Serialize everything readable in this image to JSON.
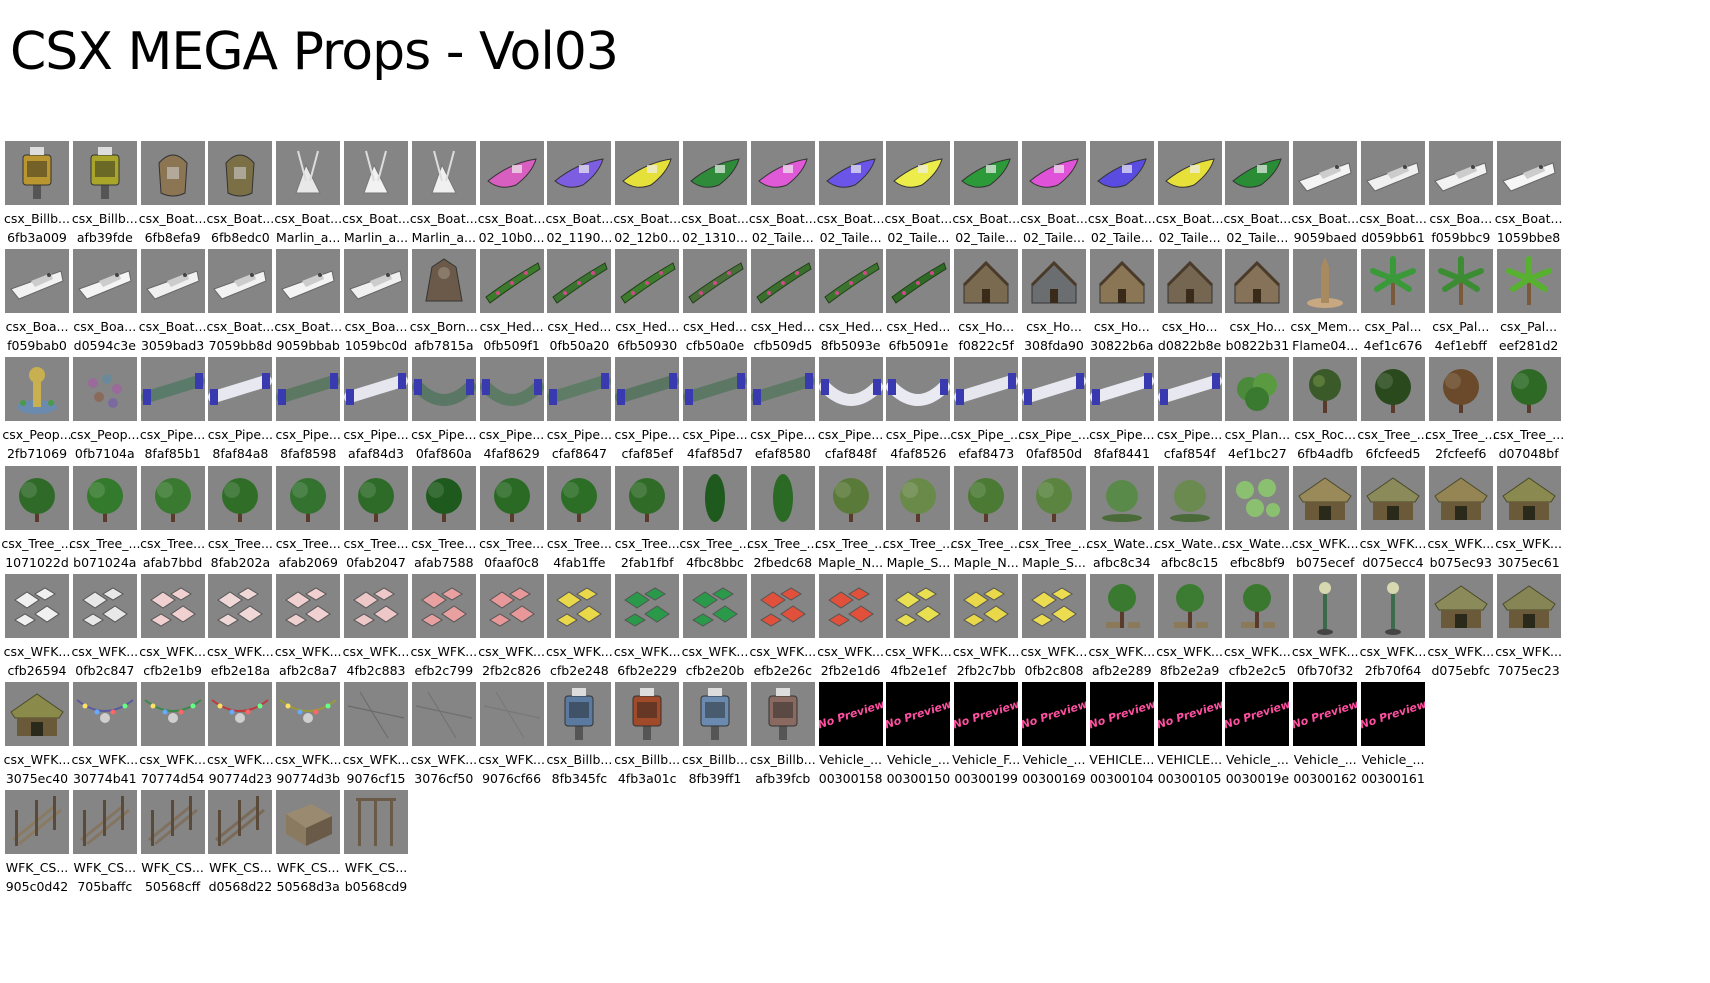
{
  "title": "CSX MEGA Props - Vol03",
  "colors": {
    "thumb_bg": "#858585",
    "no_preview_bg": "#000000",
    "no_preview_text": "#ff4fa0"
  },
  "rows": [
    [
      {
        "name": "csx_Billb...",
        "hash": "6fb3a009",
        "icon": "billboard-icon",
        "color": "#b9962f"
      },
      {
        "name": "csx_Billb...",
        "hash": "afb39fde",
        "icon": "billboard-icon",
        "color": "#a8a52a"
      },
      {
        "name": "csx_Boat...",
        "hash": "6fb8efa9",
        "icon": "boat-icon",
        "color": "#8c7552"
      },
      {
        "name": "csx_Boat...",
        "hash": "6fb8edc0",
        "icon": "boat-icon",
        "color": "#7a6f45"
      },
      {
        "name": "csx_Boat...",
        "hash": "Marlin_a...",
        "icon": "sailboat-icon",
        "color": "#e8e8e8"
      },
      {
        "name": "csx_Boat...",
        "hash": "Marlin_a...",
        "icon": "sailboat-icon",
        "color": "#f2f2f2"
      },
      {
        "name": "csx_Boat...",
        "hash": "Marlin_a...",
        "icon": "sailboat-icon",
        "color": "#f0f0f0"
      },
      {
        "name": "csx_Boat...",
        "hash": "02_10b0...",
        "icon": "speedboat-icon",
        "color": "#d85fc0"
      },
      {
        "name": "csx_Boat...",
        "hash": "02_1190...",
        "icon": "speedboat-icon",
        "color": "#7d5ee0"
      },
      {
        "name": "csx_Boat...",
        "hash": "02_12b0...",
        "icon": "speedboat-icon",
        "color": "#e6e03a"
      },
      {
        "name": "csx_Boat...",
        "hash": "02_1310...",
        "icon": "speedboat-icon",
        "color": "#2f8a3a"
      },
      {
        "name": "csx_Boat...",
        "hash": "02_Taile...",
        "icon": "speedboat-icon",
        "color": "#e05ad8"
      },
      {
        "name": "csx_Boat...",
        "hash": "02_Taile...",
        "icon": "speedboat-icon",
        "color": "#6a55e8"
      },
      {
        "name": "csx_Boat...",
        "hash": "02_Taile...",
        "icon": "speedboat-icon",
        "color": "#ecec4a"
      },
      {
        "name": "csx_Boat...",
        "hash": "02_Taile...",
        "icon": "speedboat-icon",
        "color": "#2c9a38"
      },
      {
        "name": "csx_Boat...",
        "hash": "02_Taile...",
        "icon": "speedboat-icon",
        "color": "#e052d8"
      },
      {
        "name": "csx_Boat...",
        "hash": "02_Taile...",
        "icon": "speedboat-icon",
        "color": "#5a4ce0"
      },
      {
        "name": "csx_Boat...",
        "hash": "02_Taile...",
        "icon": "speedboat-icon",
        "color": "#e8e03a"
      },
      {
        "name": "csx_Boat...",
        "hash": "02_Taile...",
        "icon": "speedboat-icon",
        "color": "#2a8c34"
      },
      {
        "name": "csx_Boat...",
        "hash": "9059baed",
        "icon": "yacht-icon",
        "color": "#f4f4f4"
      },
      {
        "name": "csx_Boat...",
        "hash": "d059bb61",
        "icon": "yacht-icon",
        "color": "#f0f0f0"
      },
      {
        "name": "csx_Boa...",
        "hash": "f059bbc9",
        "icon": "yacht-icon",
        "color": "#f2f2f2"
      },
      {
        "name": "csx_Boat...",
        "hash": "1059bbe8",
        "icon": "yacht-icon",
        "color": "#f6f6f6"
      }
    ],
    [
      {
        "name": "csx_Boa...",
        "hash": "f059bab0",
        "icon": "yacht-icon",
        "color": "#f2f2f2"
      },
      {
        "name": "csx_Boa...",
        "hash": "d0594c3e",
        "icon": "yacht-icon",
        "color": "#f4f4f4"
      },
      {
        "name": "csx_Boat...",
        "hash": "3059bad3",
        "icon": "yacht-icon",
        "color": "#f0f0f0"
      },
      {
        "name": "csx_Boat...",
        "hash": "7059bb8d",
        "icon": "yacht-icon",
        "color": "#f2f2f2"
      },
      {
        "name": "csx_Boat...",
        "hash": "9059bbab",
        "icon": "yacht-icon",
        "color": "#f4f4f4"
      },
      {
        "name": "csx_Boa...",
        "hash": "1059bc0d",
        "icon": "yacht-icon",
        "color": "#f0f0f0"
      },
      {
        "name": "csx_Born...",
        "hash": "afb7815a",
        "icon": "statue-icon",
        "color": "#6b5a4a"
      },
      {
        "name": "csx_Hed...",
        "hash": "0fb509f1",
        "icon": "hedge-icon",
        "color": "#3c7a2c"
      },
      {
        "name": "csx_Hed...",
        "hash": "0fb50a20",
        "icon": "hedge-icon",
        "color": "#3a7430"
      },
      {
        "name": "csx_Hed...",
        "hash": "6fb50930",
        "icon": "hedge-icon",
        "color": "#3e7c2e"
      },
      {
        "name": "csx_Hed...",
        "hash": "cfb50a0e",
        "icon": "hedge-icon",
        "color": "#4a6e3a"
      },
      {
        "name": "csx_Hed...",
        "hash": "cfb509d5",
        "icon": "hedge-icon",
        "color": "#3b6f2d"
      },
      {
        "name": "csx_Hed...",
        "hash": "8fb5093e",
        "icon": "hedge-icon",
        "color": "#3d7530"
      },
      {
        "name": "csx_Hed...",
        "hash": "6fb5091e",
        "icon": "hedge-icon",
        "color": "#2f6a26"
      },
      {
        "name": "csx_Ho...",
        "hash": "f0822c5f",
        "icon": "house-icon",
        "color": "#7a6a50"
      },
      {
        "name": "csx_Ho...",
        "hash": "308fda90",
        "icon": "house-icon",
        "color": "#6a6e70"
      },
      {
        "name": "csx_Ho...",
        "hash": "30822b6a",
        "icon": "house-icon",
        "color": "#8a7654"
      },
      {
        "name": "csx_Ho...",
        "hash": "d0822b8e",
        "icon": "house-icon",
        "color": "#746650"
      },
      {
        "name": "csx_Ho...",
        "hash": "b0822b31",
        "icon": "house-icon",
        "color": "#857258"
      },
      {
        "name": "csx_Mem...",
        "hash": "Flame04...",
        "icon": "monument-icon",
        "color": "#a88a60"
      },
      {
        "name": "csx_Pal...",
        "hash": "4ef1c676",
        "icon": "palm-icon",
        "color": "#3a9a3a"
      },
      {
        "name": "csx_Pal...",
        "hash": "4ef1ebff",
        "icon": "palm-icon",
        "color": "#3c8c34"
      },
      {
        "name": "csx_Pal...",
        "hash": "eef281d2",
        "icon": "palm-icon",
        "color": "#58b030"
      }
    ],
    [
      {
        "name": "csx_Peop...",
        "hash": "2fb71069",
        "icon": "fountain-icon",
        "color": "#c8b050"
      },
      {
        "name": "csx_Peop...",
        "hash": "0fb7104a",
        "icon": "crowd-icon",
        "color": "#9a6a9a"
      },
      {
        "name": "csx_Pipe...",
        "hash": "8faf85b1",
        "icon": "pipe-icon",
        "color": "#5a7a6a"
      },
      {
        "name": "csx_Pipe...",
        "hash": "8faf84a8",
        "icon": "pipe-icon",
        "color": "#e8e8f0"
      },
      {
        "name": "csx_Pipe...",
        "hash": "8faf8598",
        "icon": "pipe-icon",
        "color": "#5c7862"
      },
      {
        "name": "csx_Pipe...",
        "hash": "afaf84d3",
        "icon": "pipe-icon",
        "color": "#e6e6ee"
      },
      {
        "name": "csx_Pipe...",
        "hash": "0faf860a",
        "icon": "pipe-curve-icon",
        "color": "#5a7664"
      },
      {
        "name": "csx_Pipe...",
        "hash": "4faf8629",
        "icon": "pipe-curve-icon",
        "color": "#5c7a64"
      },
      {
        "name": "csx_Pipe...",
        "hash": "cfaf8647",
        "icon": "pipe-icon",
        "color": "#5e7c66"
      },
      {
        "name": "csx_Pipe...",
        "hash": "cfaf85ef",
        "icon": "pipe-icon",
        "color": "#5a7662"
      },
      {
        "name": "csx_Pipe...",
        "hash": "4faf85d7",
        "icon": "pipe-icon",
        "color": "#5c7864"
      },
      {
        "name": "csx_Pipe...",
        "hash": "efaf8580",
        "icon": "pipe-icon",
        "color": "#5e7a66"
      },
      {
        "name": "csx_Pipe...",
        "hash": "cfaf848f",
        "icon": "pipe-curve-icon",
        "color": "#e8e8f0"
      },
      {
        "name": "csx_Pipe...",
        "hash": "4faf8526",
        "icon": "pipe-curve-icon",
        "color": "#eaeaf2"
      },
      {
        "name": "csx_Pipe_...",
        "hash": "efaf8473",
        "icon": "pipe-icon",
        "color": "#e6e6ee"
      },
      {
        "name": "csx_Pipe_...",
        "hash": "0faf850d",
        "icon": "pipe-icon",
        "color": "#e8e8f0"
      },
      {
        "name": "csx_Pipe...",
        "hash": "8faf8441",
        "icon": "pipe-icon",
        "color": "#eaeaf2"
      },
      {
        "name": "csx_Pipe...",
        "hash": "cfaf854f",
        "icon": "pipe-icon",
        "color": "#e8e8f0"
      },
      {
        "name": "csx_Plan...",
        "hash": "4ef1bc27",
        "icon": "plant-icon",
        "color": "#4a8a3a"
      },
      {
        "name": "csx_Roc...",
        "hash": "6fb4adfb",
        "icon": "rock-plant-icon",
        "color": "#3a5a2a"
      },
      {
        "name": "csx_Tree_...",
        "hash": "6fcfeed5",
        "icon": "tree-icon",
        "color": "#2a4a1e"
      },
      {
        "name": "csx_Tree_...",
        "hash": "2fcfeef6",
        "icon": "tree-icon",
        "color": "#6a4a2a"
      },
      {
        "name": "csx_Tree_...",
        "hash": "d07048bf",
        "icon": "tree-icon",
        "color": "#2e6a26"
      }
    ],
    [
      {
        "name": "csx_Tree_...",
        "hash": "1071022d",
        "icon": "tree-icon",
        "color": "#2f6a28"
      },
      {
        "name": "csx_Tree_...",
        "hash": "b071024a",
        "icon": "tree-icon",
        "color": "#347a2c"
      },
      {
        "name": "csx_Tree...",
        "hash": "afab7bbd",
        "icon": "tree-icon",
        "color": "#3a7a30"
      },
      {
        "name": "csx_Tree...",
        "hash": "8fab202a",
        "icon": "tree-icon",
        "color": "#306e28"
      },
      {
        "name": "csx_Tree...",
        "hash": "afab2069",
        "icon": "tree-icon",
        "color": "#347230"
      },
      {
        "name": "csx_Tree...",
        "hash": "0fab2047",
        "icon": "tree-icon",
        "color": "#2e6a28"
      },
      {
        "name": "csx_Tree...",
        "hash": "afab7588",
        "icon": "tree-icon",
        "color": "#1e5a1e"
      },
      {
        "name": "csx_Tree...",
        "hash": "0faaf0c8",
        "icon": "tree-icon",
        "color": "#2a6a24"
      },
      {
        "name": "csx_Tree...",
        "hash": "4fab1ffe",
        "icon": "tree-icon",
        "color": "#2c6e26"
      },
      {
        "name": "csx_Tree...",
        "hash": "2fab1fbf",
        "icon": "tree-icon",
        "color": "#306c28"
      },
      {
        "name": "csx_Tree_...",
        "hash": "4fbc8bbc",
        "icon": "cypress-icon",
        "color": "#1e5a1e"
      },
      {
        "name": "csx_Tree_...",
        "hash": "2fbedc68",
        "icon": "cypress-icon",
        "color": "#2a6a24"
      },
      {
        "name": "csx_Tree_...",
        "hash": "Maple_N...",
        "icon": "tree-icon",
        "color": "#5a7a3a"
      },
      {
        "name": "csx_Tree_...",
        "hash": "Maple_S...",
        "icon": "tree-icon",
        "color": "#6a8a4a"
      },
      {
        "name": "csx_Tree_...",
        "hash": "Maple_N...",
        "icon": "tree-icon",
        "color": "#4a7a34"
      },
      {
        "name": "csx_Tree_...",
        "hash": "Maple_S...",
        "icon": "tree-icon",
        "color": "#5a8440"
      },
      {
        "name": "csx_Wate...",
        "hash": "afbc8c34",
        "icon": "water-plant-icon",
        "color": "#5a8a4a"
      },
      {
        "name": "csx_Wate...",
        "hash": "afbc8c15",
        "icon": "water-plant-icon",
        "color": "#6a8a50"
      },
      {
        "name": "csx_Wate...",
        "hash": "efbc8bf9",
        "icon": "lily-pad-icon",
        "color": "#8ac070"
      },
      {
        "name": "csx_WFK...",
        "hash": "b075ecef",
        "icon": "hut-icon",
        "color": "#9a8a5a"
      },
      {
        "name": "csx_WFK...",
        "hash": "d075ecc4",
        "icon": "hut-icon",
        "color": "#8a8a5a"
      },
      {
        "name": "csx_WFK...",
        "hash": "b075ec93",
        "icon": "hut-icon",
        "color": "#958555"
      },
      {
        "name": "csx_WFK...",
        "hash": "3075ec61",
        "icon": "hut-icon",
        "color": "#8a8a50"
      }
    ],
    [
      {
        "name": "csx_WFK...",
        "hash": "cfb26594",
        "icon": "umbrella-icon",
        "color": "#f0f0f0"
      },
      {
        "name": "csx_WFK...",
        "hash": "0fb2c847",
        "icon": "umbrella-icon",
        "color": "#e8e8e8"
      },
      {
        "name": "csx_WFK...",
        "hash": "cfb2e1b9",
        "icon": "umbrella-icon",
        "color": "#f0d0d0"
      },
      {
        "name": "csx_WFK...",
        "hash": "efb2e18a",
        "icon": "umbrella-icon",
        "color": "#f0d8d8"
      },
      {
        "name": "csx_WFK...",
        "hash": "afb2c8a7",
        "icon": "umbrella-icon",
        "color": "#f0d0d0"
      },
      {
        "name": "csx_WFK...",
        "hash": "4fb2c883",
        "icon": "umbrella-icon",
        "color": "#eec8c8"
      },
      {
        "name": "csx_WFK...",
        "hash": "efb2c799",
        "icon": "umbrella-icon",
        "color": "#e8a0a0"
      },
      {
        "name": "csx_WFK...",
        "hash": "2fb2c826",
        "icon": "umbrella-icon",
        "color": "#e89898"
      },
      {
        "name": "csx_WFK...",
        "hash": "cfb2e248",
        "icon": "umbrella-icon",
        "color": "#e8d84a"
      },
      {
        "name": "csx_WFK...",
        "hash": "6fb2e229",
        "icon": "umbrella-icon",
        "color": "#2a9a4a"
      },
      {
        "name": "csx_WFK...",
        "hash": "cfb2e20b",
        "icon": "umbrella-icon",
        "color": "#2a9a4a"
      },
      {
        "name": "csx_WFK...",
        "hash": "efb2e26c",
        "icon": "umbrella-icon",
        "color": "#e0503a"
      },
      {
        "name": "csx_WFK...",
        "hash": "2fb2e1d6",
        "icon": "umbrella-icon",
        "color": "#e0503a"
      },
      {
        "name": "csx_WFK...",
        "hash": "4fb2e1ef",
        "icon": "umbrella-icon",
        "color": "#e8e050"
      },
      {
        "name": "csx_WFK...",
        "hash": "2fb2c7bb",
        "icon": "umbrella-icon",
        "color": "#e8d84a"
      },
      {
        "name": "csx_WFK...",
        "hash": "0fb2c808",
        "icon": "umbrella-icon",
        "color": "#ecdc50"
      },
      {
        "name": "csx_WFK...",
        "hash": "afb2e289",
        "icon": "tree-table-icon",
        "color": "#3a7a30"
      },
      {
        "name": "csx_WFK...",
        "hash": "8fb2e2a9",
        "icon": "tree-table-icon",
        "color": "#3c7c32"
      },
      {
        "name": "csx_WFK...",
        "hash": "cfb2e2c5",
        "icon": "tree-table-icon",
        "color": "#3a7830"
      },
      {
        "name": "csx_WFK...",
        "hash": "0fb70f32",
        "icon": "lamp-icon",
        "color": "#3a6a4a"
      },
      {
        "name": "csx_WFK...",
        "hash": "2fb70f64",
        "icon": "lamp-icon",
        "color": "#3c6c4c"
      },
      {
        "name": "csx_WFK...",
        "hash": "d075ebfc",
        "icon": "hut-icon",
        "color": "#8a8a5a"
      },
      {
        "name": "csx_WFK...",
        "hash": "7075ec23",
        "icon": "hut-icon",
        "color": "#858555"
      }
    ],
    [
      {
        "name": "csx_WFK...",
        "hash": "3075ec40",
        "icon": "hut-icon",
        "color": "#8a8a4a"
      },
      {
        "name": "csx_WFK...",
        "hash": "30774b41",
        "icon": "string-lights-icon",
        "color": "#5a5aa0"
      },
      {
        "name": "csx_WFK...",
        "hash": "70774d54",
        "icon": "string-lights-icon",
        "color": "#3a8a4a"
      },
      {
        "name": "csx_WFK...",
        "hash": "90774d23",
        "icon": "string-lights-icon",
        "color": "#c03a3a"
      },
      {
        "name": "csx_WFK...",
        "hash": "90774d3b",
        "icon": "string-lights-icon",
        "color": "#9a9a3a"
      },
      {
        "name": "csx_WFK...",
        "hash": "9076cf15",
        "icon": "wire-icon",
        "color": "#6a6a6a"
      },
      {
        "name": "csx_WFK...",
        "hash": "3076cf50",
        "icon": "wire-icon",
        "color": "#707070"
      },
      {
        "name": "csx_WFK...",
        "hash": "9076cf66",
        "icon": "wire-icon",
        "color": "#787878"
      },
      {
        "name": "csx_Billb...",
        "hash": "8fb345fc",
        "icon": "billboard-icon",
        "color": "#5a7aa0"
      },
      {
        "name": "csx_Billb...",
        "hash": "4fb3a01c",
        "icon": "billboard-icon",
        "color": "#a04a2a"
      },
      {
        "name": "csx_Billb...",
        "hash": "8fb39ff1",
        "icon": "billboard-icon",
        "color": "#6a8ab0"
      },
      {
        "name": "csx_Billb...",
        "hash": "afb39fcb",
        "icon": "billboard-icon",
        "color": "#8a6a60"
      },
      {
        "name": "Vehicle_...",
        "hash": "00300158",
        "icon": "no-preview-icon",
        "color": "#000000",
        "no_preview": true
      },
      {
        "name": "Vehicle_...",
        "hash": "00300150",
        "icon": "no-preview-icon",
        "color": "#000000",
        "no_preview": true
      },
      {
        "name": "Vehicle_F...",
        "hash": "00300199",
        "icon": "no-preview-icon",
        "color": "#000000",
        "no_preview": true
      },
      {
        "name": "Vehicle_...",
        "hash": "00300169",
        "icon": "no-preview-icon",
        "color": "#000000",
        "no_preview": true
      },
      {
        "name": "VEHICLE...",
        "hash": "00300104",
        "icon": "no-preview-icon",
        "color": "#000000",
        "no_preview": true
      },
      {
        "name": "VEHICLE...",
        "hash": "00300105",
        "icon": "no-preview-icon",
        "color": "#000000",
        "no_preview": true
      },
      {
        "name": "Vehicle_...",
        "hash": "0030019e",
        "icon": "no-preview-icon",
        "color": "#000000",
        "no_preview": true
      },
      {
        "name": "Vehicle_...",
        "hash": "00300162",
        "icon": "no-preview-icon",
        "color": "#000000",
        "no_preview": true
      },
      {
        "name": "Vehicle_...",
        "hash": "00300161",
        "icon": "no-preview-icon",
        "color": "#000000",
        "no_preview": true
      }
    ],
    [
      {
        "name": "WFK_CS...",
        "hash": "905c0d42",
        "icon": "fence-icon",
        "color": "#8a7a60"
      },
      {
        "name": "WFK_CS...",
        "hash": "705baffc",
        "icon": "fence-icon",
        "color": "#857560"
      },
      {
        "name": "WFK_CS...",
        "hash": "50568cff",
        "icon": "fence-icon",
        "color": "#807060"
      },
      {
        "name": "WFK_CS...",
        "hash": "d0568d22",
        "icon": "fence-icon",
        "color": "#7a6a58"
      },
      {
        "name": "WFK_CS...",
        "hash": "50568d3a",
        "icon": "crate-icon",
        "color": "#8a7a60"
      },
      {
        "name": "WFK_CS...",
        "hash": "b0568cd9",
        "icon": "gate-icon",
        "color": "#6a5a48"
      }
    ]
  ],
  "no_preview_label": "No Preview"
}
